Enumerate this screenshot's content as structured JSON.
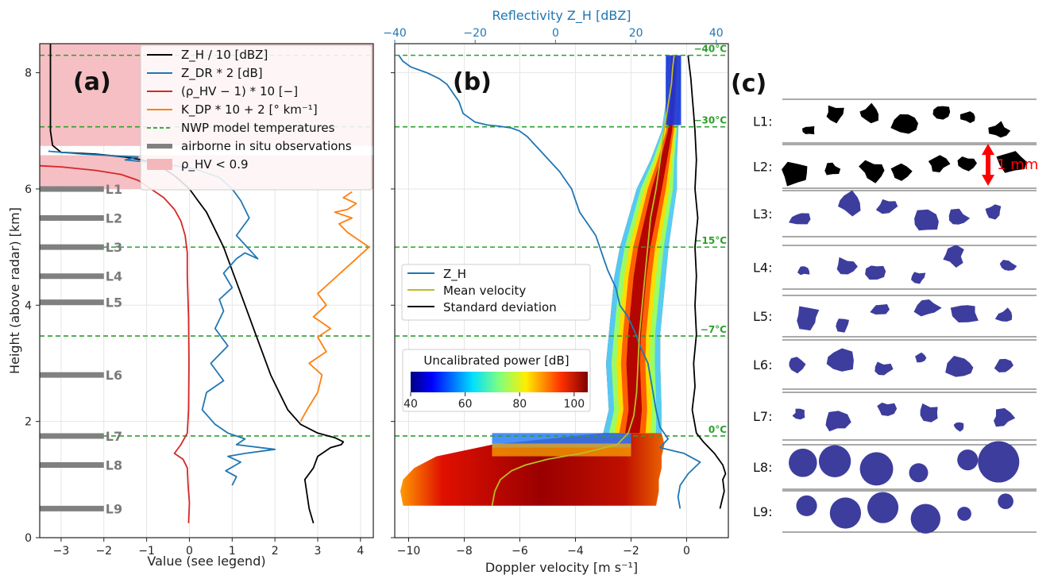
{
  "chart_data": [
    {
      "panel": "(a)",
      "type": "line",
      "xlabel": "Value (see legend)",
      "ylabel": "Height (above radar) [km]",
      "xlim": [
        -3.5,
        4.3
      ],
      "ylim": [
        0,
        8.5
      ],
      "xticks": [
        "−3",
        "−2",
        "−1",
        "0",
        "1",
        "2",
        "3",
        "4"
      ],
      "yticks": [
        "0",
        "2",
        "4",
        "6",
        "8"
      ],
      "grid": true,
      "legend_position": "top-right",
      "legend": [
        "Z_H / 10 [dBZ]",
        "Z_DR * 2 [dB]",
        "(ρ_HV − 1) * 10 [−]",
        "K_DP * 10 + 2 [° km⁻¹]",
        "NWP model temperatures",
        "airborne in situ observations",
        "ρ_HV < 0.9"
      ],
      "shaded_region_rhohv_lt_0_9": [
        [
          6.0,
          6.58
        ],
        [
          6.74,
          8.5
        ]
      ],
      "temperature_levels_km": [
        1.75,
        3.47,
        5.0,
        7.07,
        8.3
      ],
      "insitu_levels": [
        {
          "label": "L1",
          "height": 6.0
        },
        {
          "label": "L2",
          "height": 5.5
        },
        {
          "label": "L3",
          "height": 5.0
        },
        {
          "label": "L4",
          "height": 4.5
        },
        {
          "label": "L5",
          "height": 4.05
        },
        {
          "label": "L6",
          "height": 2.8
        },
        {
          "label": "L7",
          "height": 1.75
        },
        {
          "label": "L8",
          "height": 1.25
        },
        {
          "label": "L9",
          "height": 0.5
        }
      ],
      "series": [
        {
          "name": "Z_H / 10 [dBZ]",
          "color": "#000000",
          "x": [
            2.9,
            2.8,
            2.75,
            2.7,
            2.9,
            3.0,
            3.3,
            3.55,
            3.6,
            3.4,
            3.0,
            2.6,
            2.3,
            2.1,
            1.9,
            1.7,
            1.5,
            1.3,
            1.1,
            0.9,
            0.8,
            0.6,
            0.4,
            0.2,
            0.0,
            -0.3,
            -0.6,
            -0.9,
            -1.1,
            -1.5,
            -2.2,
            -3.0,
            -3.2,
            -3.25,
            -3.25
          ],
          "y": [
            0.25,
            0.5,
            0.75,
            1.0,
            1.2,
            1.4,
            1.55,
            1.6,
            1.65,
            1.72,
            1.8,
            1.95,
            2.2,
            2.5,
            2.8,
            3.2,
            3.6,
            4.0,
            4.4,
            4.8,
            5.0,
            5.3,
            5.6,
            5.8,
            6.0,
            6.2,
            6.35,
            6.45,
            6.5,
            6.55,
            6.6,
            6.63,
            6.75,
            7.0,
            8.5
          ]
        },
        {
          "name": "Z_DR * 2 [dB]",
          "color": "#1f77b4",
          "x": [
            1.0,
            1.1,
            0.85,
            1.2,
            0.9,
            1.3,
            2.0,
            1.1,
            1.3,
            0.9,
            0.6,
            0.3,
            0.4,
            0.8,
            0.5,
            0.9,
            0.6,
            0.8,
            0.7,
            1.0,
            0.8,
            1.1,
            1.3,
            1.6,
            1.1,
            1.4,
            1.2,
            1.0,
            0.7,
            0.1,
            -0.8,
            -1.5,
            -1.2,
            -2.5,
            -3.3
          ],
          "y": [
            0.9,
            1.05,
            1.15,
            1.3,
            1.4,
            1.45,
            1.52,
            1.6,
            1.7,
            1.8,
            1.95,
            2.2,
            2.5,
            2.7,
            3.0,
            3.3,
            3.6,
            3.9,
            4.1,
            4.3,
            4.55,
            4.8,
            4.9,
            4.8,
            5.2,
            5.5,
            5.8,
            6.0,
            6.2,
            6.35,
            6.45,
            6.5,
            6.55,
            6.6,
            6.65
          ]
        },
        {
          "name": "(ρ_HV − 1) * 10 [−]",
          "color": "#d62728",
          "x": [
            -0.02,
            0.0,
            -0.03,
            -0.05,
            -0.15,
            -0.35,
            -0.2,
            -0.05,
            -0.02,
            -0.01,
            -0.02,
            -0.05,
            -0.05,
            -0.1,
            -0.2,
            -0.35,
            -0.6,
            -0.9,
            -1.2,
            -1.6,
            -2.2,
            -3.0,
            -3.5
          ],
          "y": [
            0.25,
            0.6,
            0.9,
            1.2,
            1.35,
            1.45,
            1.6,
            1.8,
            2.2,
            3.0,
            3.8,
            4.5,
            4.9,
            5.2,
            5.45,
            5.65,
            5.85,
            6.0,
            6.15,
            6.25,
            6.32,
            6.38,
            6.4
          ]
        },
        {
          "name": "K_DP * 10 + 2 [° km⁻¹]",
          "color": "#ff7f0e",
          "x": [
            2.6,
            2.75,
            3.0,
            3.1,
            2.8,
            3.2,
            3.0,
            3.3,
            2.9,
            3.2,
            3.0,
            3.3,
            3.6,
            3.9,
            4.2,
            4.0,
            3.7,
            3.5,
            3.8,
            3.4,
            3.7,
            3.9,
            3.6,
            3.8
          ],
          "y": [
            2.0,
            2.2,
            2.5,
            2.8,
            3.0,
            3.2,
            3.45,
            3.6,
            3.8,
            4.0,
            4.2,
            4.4,
            4.6,
            4.8,
            5.0,
            5.1,
            5.25,
            5.4,
            5.5,
            5.6,
            5.65,
            5.75,
            5.85,
            5.95
          ]
        }
      ]
    },
    {
      "panel": "(b)",
      "type": "heatmap",
      "xlabel": "Doppler velocity [m s⁻¹]",
      "x2label": "Reflectivity Z_H [dBZ]",
      "xlim": [
        -10.5,
        1.5
      ],
      "x2lim": [
        -40,
        43
      ],
      "ylim": [
        0,
        8.5
      ],
      "xticks": [
        "−10",
        "−8",
        "−6",
        "−4",
        "−2",
        "0"
      ],
      "x2ticks": [
        "−40",
        "−20",
        "0",
        "20",
        "40"
      ],
      "grid": true,
      "legend_position": "center-left",
      "legend": [
        "Z_H",
        "Mean velocity",
        "Standard deviation"
      ],
      "colorbar": {
        "label": "Uncalibrated power [dB]",
        "ticks": [
          "40",
          "60",
          "80",
          "100"
        ],
        "range": [
          40,
          105
        ],
        "colormap": "jet"
      },
      "temperature_labels": [
        {
          "label": "0°C",
          "height": 1.75
        },
        {
          "label": "−7°C",
          "height": 3.47
        },
        {
          "label": "−15°C",
          "height": 5.0
        },
        {
          "label": "−30°C",
          "height": 7.07
        },
        {
          "label": "−40°C",
          "height": 8.3
        }
      ],
      "spectrum_envelope": {
        "height": [
          0.55,
          0.8,
          1.0,
          1.2,
          1.4,
          1.6,
          1.8,
          2.2,
          3.0,
          3.5,
          4.0,
          4.5,
          5.0,
          5.5,
          6.0,
          6.5,
          7.0,
          7.5,
          8.0,
          8.3
        ],
        "left": [
          -10.2,
          -10.3,
          -10.2,
          -9.8,
          -9.0,
          -7.0,
          -3.0,
          -2.8,
          -2.9,
          -2.8,
          -2.7,
          -2.6,
          -2.4,
          -2.1,
          -1.8,
          -1.3,
          -0.9,
          -0.75,
          -0.75,
          -0.7
        ],
        "right": [
          -1.1,
          -1.0,
          -1.0,
          -0.9,
          -0.9,
          -0.8,
          -0.9,
          -0.9,
          -0.95,
          -0.95,
          -0.85,
          -0.75,
          -0.65,
          -0.5,
          -0.35,
          -0.35,
          -0.3,
          -0.25,
          -0.2,
          -0.2
        ]
      },
      "series": [
        {
          "name": "Z_H",
          "axis": "x2",
          "color": "#1f77b4",
          "zh": [
            31,
            30.5,
            31,
            33,
            36,
            32,
            26,
            28,
            26,
            25,
            24,
            23,
            21,
            20,
            18,
            16,
            15,
            13,
            12,
            11,
            10,
            8,
            6,
            5,
            4,
            3,
            1,
            -1,
            -3,
            -5,
            -7,
            -9,
            -11,
            -14,
            -17,
            -20,
            -23,
            -24,
            -26,
            -27,
            -29,
            -32,
            -36,
            -38,
            -39
          ],
          "y": [
            0.5,
            0.7,
            0.9,
            1.1,
            1.3,
            1.45,
            1.55,
            1.7,
            1.9,
            2.2,
            2.6,
            3.0,
            3.3,
            3.5,
            3.8,
            4.0,
            4.3,
            4.6,
            4.8,
            5.0,
            5.2,
            5.4,
            5.6,
            5.8,
            6.0,
            6.1,
            6.3,
            6.45,
            6.6,
            6.75,
            6.9,
            7.0,
            7.05,
            7.08,
            7.1,
            7.15,
            7.3,
            7.5,
            7.7,
            7.8,
            7.9,
            8.0,
            8.1,
            8.2,
            8.3
          ]
        },
        {
          "name": "Mean velocity",
          "axis": "x",
          "color": "#bcbd22",
          "x": [
            -7.0,
            -6.9,
            -6.7,
            -6.3,
            -5.8,
            -5.0,
            -3.8,
            -2.5,
            -2.1,
            -1.9,
            -1.8,
            -1.75,
            -1.7,
            -1.6,
            -1.5,
            -1.4,
            -1.3,
            -1.1,
            -0.95,
            -0.85,
            -0.75,
            -0.65,
            -0.55,
            -0.5,
            -0.45
          ],
          "y": [
            0.55,
            0.8,
            1.0,
            1.15,
            1.25,
            1.35,
            1.45,
            1.6,
            1.8,
            2.1,
            2.5,
            3.0,
            3.5,
            4.0,
            4.5,
            5.0,
            5.5,
            6.0,
            6.5,
            6.9,
            7.2,
            7.5,
            7.8,
            8.1,
            8.3
          ]
        },
        {
          "name": "Standard deviation",
          "axis": "x",
          "color": "#000000",
          "x": [
            1.2,
            1.35,
            1.3,
            1.4,
            1.3,
            1.0,
            0.6,
            0.35,
            0.2,
            0.3,
            0.25,
            0.35,
            0.3,
            0.35,
            0.3,
            0.4,
            0.3,
            0.35,
            0.3,
            0.25,
            0.2,
            0.15,
            0.1,
            0.05
          ],
          "y": [
            0.5,
            0.8,
            1.0,
            1.1,
            1.25,
            1.45,
            1.65,
            1.8,
            2.2,
            2.6,
            3.0,
            3.5,
            4.0,
            4.5,
            5.0,
            5.5,
            6.0,
            6.5,
            7.0,
            7.3,
            7.6,
            7.9,
            8.1,
            8.3
          ]
        }
      ]
    }
  ],
  "panel_c": {
    "label": "(c)",
    "rows": [
      "L1:",
      "L2:",
      "L3:",
      "L4:",
      "L5:",
      "L6:",
      "L7:",
      "L8:",
      "L9:"
    ],
    "scale_label": "1 mm",
    "colors": {
      "dark": "#000000",
      "blue": "#3d3d9e"
    }
  }
}
